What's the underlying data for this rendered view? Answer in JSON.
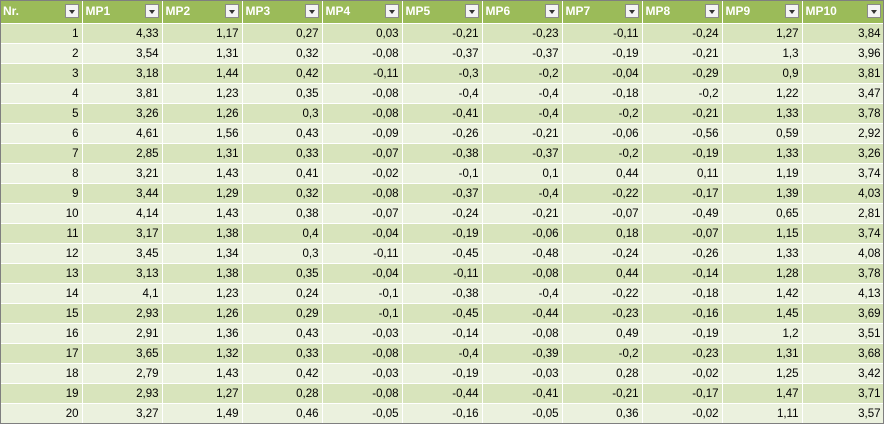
{
  "table": {
    "headers": [
      "Nr.",
      "MP1",
      "MP2",
      "MP3",
      "MP4",
      "MP5",
      "MP6",
      "MP7",
      "MP8",
      "MP9",
      "MP10"
    ],
    "filter_icon": "dropdown-arrow-icon",
    "colors": {
      "header": "#9bbb59",
      "band_odd": "#d8e4bc",
      "band_even": "#ebf1de"
    },
    "rows": [
      [
        "1",
        "4,33",
        "1,17",
        "0,27",
        "0,03",
        "-0,21",
        "-0,23",
        "-0,11",
        "-0,24",
        "1,27",
        "3,84"
      ],
      [
        "2",
        "3,54",
        "1,31",
        "0,32",
        "-0,08",
        "-0,37",
        "-0,37",
        "-0,19",
        "-0,21",
        "1,3",
        "3,96"
      ],
      [
        "3",
        "3,18",
        "1,44",
        "0,42",
        "-0,11",
        "-0,3",
        "-0,2",
        "-0,04",
        "-0,29",
        "0,9",
        "3,81"
      ],
      [
        "4",
        "3,81",
        "1,23",
        "0,35",
        "-0,08",
        "-0,4",
        "-0,4",
        "-0,18",
        "-0,2",
        "1,22",
        "3,47"
      ],
      [
        "5",
        "3,26",
        "1,26",
        "0,3",
        "-0,08",
        "-0,41",
        "-0,4",
        "-0,2",
        "-0,21",
        "1,33",
        "3,78"
      ],
      [
        "6",
        "4,61",
        "1,56",
        "0,43",
        "-0,09",
        "-0,26",
        "-0,21",
        "-0,06",
        "-0,56",
        "0,59",
        "2,92"
      ],
      [
        "7",
        "2,85",
        "1,31",
        "0,33",
        "-0,07",
        "-0,38",
        "-0,37",
        "-0,2",
        "-0,19",
        "1,33",
        "3,26"
      ],
      [
        "8",
        "3,21",
        "1,43",
        "0,41",
        "-0,02",
        "-0,1",
        "0,1",
        "0,44",
        "0,11",
        "1,19",
        "3,74"
      ],
      [
        "9",
        "3,44",
        "1,29",
        "0,32",
        "-0,08",
        "-0,37",
        "-0,4",
        "-0,22",
        "-0,17",
        "1,39",
        "4,03"
      ],
      [
        "10",
        "4,14",
        "1,43",
        "0,38",
        "-0,07",
        "-0,24",
        "-0,21",
        "-0,07",
        "-0,49",
        "0,65",
        "2,81"
      ],
      [
        "11",
        "3,17",
        "1,38",
        "0,4",
        "-0,04",
        "-0,19",
        "-0,06",
        "0,18",
        "-0,07",
        "1,15",
        "3,74"
      ],
      [
        "12",
        "3,45",
        "1,34",
        "0,3",
        "-0,11",
        "-0,45",
        "-0,48",
        "-0,24",
        "-0,26",
        "1,33",
        "4,08"
      ],
      [
        "13",
        "3,13",
        "1,38",
        "0,35",
        "-0,04",
        "-0,11",
        "-0,08",
        "0,44",
        "-0,14",
        "1,28",
        "3,78"
      ],
      [
        "14",
        "4,1",
        "1,23",
        "0,24",
        "-0,1",
        "-0,38",
        "-0,4",
        "-0,22",
        "-0,18",
        "1,42",
        "4,13"
      ],
      [
        "15",
        "2,93",
        "1,26",
        "0,29",
        "-0,1",
        "-0,45",
        "-0,44",
        "-0,23",
        "-0,16",
        "1,45",
        "3,69"
      ],
      [
        "16",
        "2,91",
        "1,36",
        "0,43",
        "-0,03",
        "-0,14",
        "-0,08",
        "0,49",
        "-0,19",
        "1,2",
        "3,51"
      ],
      [
        "17",
        "3,65",
        "1,32",
        "0,33",
        "-0,08",
        "-0,4",
        "-0,39",
        "-0,2",
        "-0,23",
        "1,31",
        "3,68"
      ],
      [
        "18",
        "2,79",
        "1,43",
        "0,42",
        "-0,03",
        "-0,19",
        "-0,03",
        "0,28",
        "-0,02",
        "1,25",
        "3,42"
      ],
      [
        "19",
        "2,93",
        "1,27",
        "0,28",
        "-0,08",
        "-0,44",
        "-0,41",
        "-0,21",
        "-0,17",
        "1,47",
        "3,71"
      ],
      [
        "20",
        "3,27",
        "1,49",
        "0,46",
        "-0,05",
        "-0,16",
        "-0,05",
        "0,36",
        "-0,02",
        "1,11",
        "3,57"
      ]
    ]
  }
}
